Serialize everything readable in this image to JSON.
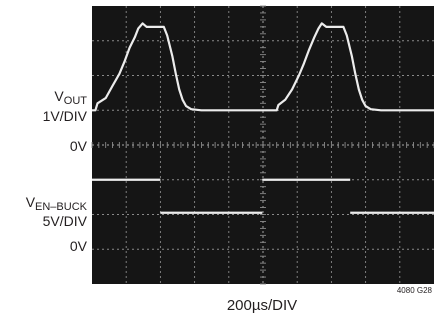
{
  "chart_data": {
    "type": "line",
    "title": "",
    "xlabel": "200µs/DIV",
    "figure_id": "4080 G28",
    "x_divisions": 10,
    "y_divisions": 8,
    "grid": true,
    "background": "#151515",
    "trace_color": "#ececec",
    "grid_color": "#8a8a8a",
    "channels": [
      {
        "name_main": "V",
        "name_sub": "OUT",
        "scale": "1V/DIV",
        "zero_label": "0V",
        "zero_div_from_top": 3.0,
        "volts_per_div": 1,
        "points_div": [
          [
            0,
            0
          ],
          [
            0.1,
            0
          ],
          [
            0.16,
            0.2
          ],
          [
            0.4,
            0.35
          ],
          [
            0.6,
            0.7
          ],
          [
            0.8,
            1.05
          ],
          [
            0.95,
            1.4
          ],
          [
            1.1,
            1.8
          ],
          [
            1.25,
            2.1
          ],
          [
            1.35,
            2.35
          ],
          [
            1.48,
            2.5
          ],
          [
            1.6,
            2.4
          ],
          [
            1.72,
            2.4
          ],
          [
            1.95,
            2.4
          ],
          [
            2.1,
            2.4
          ],
          [
            2.2,
            2.15
          ],
          [
            2.35,
            1.55
          ],
          [
            2.45,
            1.05
          ],
          [
            2.55,
            0.6
          ],
          [
            2.65,
            0.3
          ],
          [
            2.75,
            0.12
          ],
          [
            2.9,
            0.03
          ],
          [
            3.2,
            0
          ],
          [
            4.0,
            0
          ],
          [
            5.0,
            0
          ],
          [
            5.4,
            0
          ],
          [
            5.45,
            0.15
          ],
          [
            5.65,
            0.3
          ],
          [
            5.85,
            0.6
          ],
          [
            6.05,
            1.0
          ],
          [
            6.2,
            1.35
          ],
          [
            6.35,
            1.75
          ],
          [
            6.5,
            2.1
          ],
          [
            6.62,
            2.35
          ],
          [
            6.72,
            2.5
          ],
          [
            6.85,
            2.4
          ],
          [
            7.0,
            2.4
          ],
          [
            7.25,
            2.4
          ],
          [
            7.35,
            2.4
          ],
          [
            7.45,
            2.15
          ],
          [
            7.6,
            1.55
          ],
          [
            7.7,
            1.05
          ],
          [
            7.8,
            0.6
          ],
          [
            7.9,
            0.3
          ],
          [
            8.0,
            0.12
          ],
          [
            8.15,
            0.03
          ],
          [
            8.45,
            0
          ],
          [
            9.2,
            0
          ],
          [
            10,
            0
          ]
        ]
      },
      {
        "name_main": "V",
        "name_sub": "EN–BUCK",
        "scale": "5V/DIV",
        "zero_label": "0V",
        "zero_div_from_top": 5.95,
        "volts_per_div": 5,
        "segments_div": [
          {
            "x": [
              0,
              2.0
            ],
            "level": 0.95
          },
          {
            "x": [
              2.0,
              4.98
            ],
            "level": 0
          },
          {
            "x": [
              4.98,
              7.55
            ],
            "level": 0.95
          },
          {
            "x": [
              7.55,
              10
            ],
            "level": 0
          }
        ]
      }
    ]
  }
}
